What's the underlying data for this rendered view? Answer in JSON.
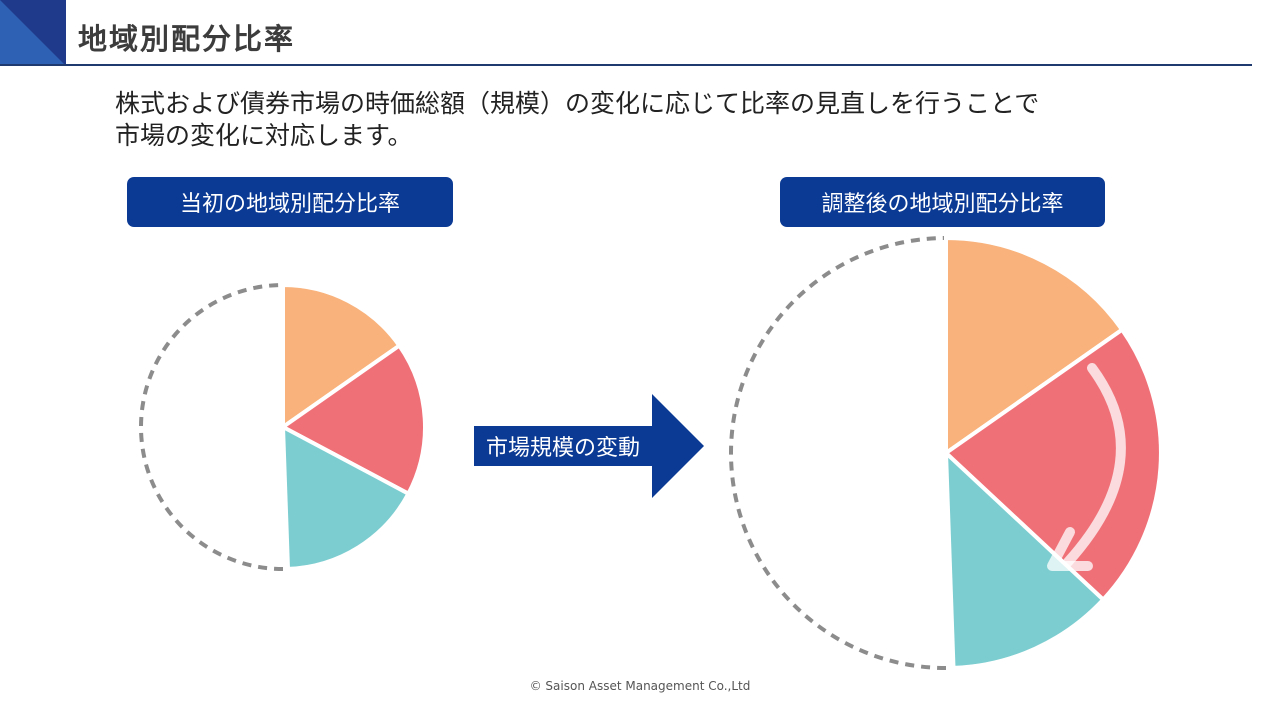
{
  "header": {
    "title": "地域別配分比率"
  },
  "description": {
    "line1": "株式および債券市場の時価総額（規模）の変化に応じて比率の見直しを行うことで",
    "line2": "市場の変化に対応します。"
  },
  "diagram": {
    "initial_label": "当初の地域別配分比率",
    "adjusted_label": "調整後の地域別配分比率",
    "arrow_label": "市場規模の変動"
  },
  "colors": {
    "brand_blue": "#0b3a94",
    "orange": "#f9b27b",
    "red": "#f07078",
    "teal": "#7ccdd0",
    "dashed_outline": "#8c8c8c"
  },
  "chart_data": [
    {
      "type": "pie",
      "title": "当初の地域別配分比率",
      "categories": [
        "orange segment",
        "red segment",
        "teal segment",
        "unfilled (dashed)"
      ],
      "values_deg": [
        55,
        63,
        60,
        182
      ],
      "colors": [
        "#f9b27b",
        "#f07078",
        "#7ccdd0",
        "none"
      ]
    },
    {
      "type": "pie",
      "title": "調整後の地域別配分比率",
      "categories": [
        "orange segment",
        "red segment",
        "teal segment",
        "unfilled (dashed)"
      ],
      "values_deg": [
        55,
        78,
        45,
        182
      ],
      "colors": [
        "#f9b27b",
        "#f07078",
        "#7ccdd0",
        "none"
      ],
      "annotation": "clockwise arrow indicating change"
    }
  ],
  "footer": {
    "copyright": "©  Saison Asset Management Co.,Ltd"
  }
}
